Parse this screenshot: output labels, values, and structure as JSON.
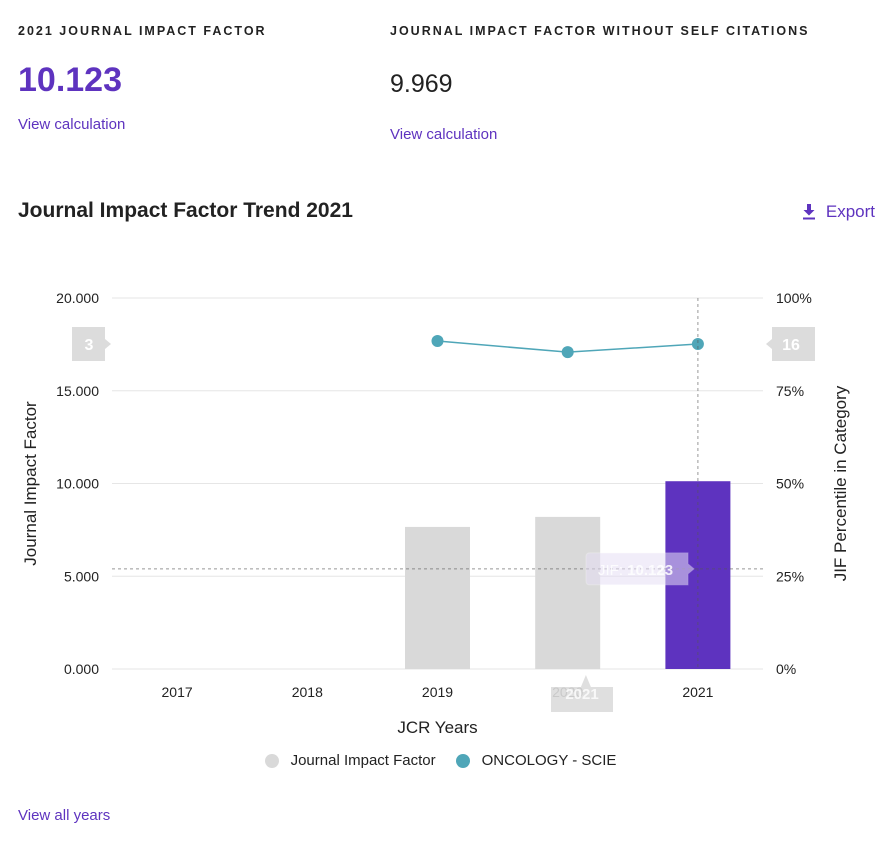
{
  "metrics": [
    {
      "label": "2021 JOURNAL IMPACT FACTOR",
      "value": "10.123",
      "link": "View calculation"
    },
    {
      "label": "JOURNAL IMPACT FACTOR WITHOUT SELF CITATIONS",
      "value": "9.969",
      "link": "View calculation"
    }
  ],
  "trend": {
    "title": "Journal Impact Factor Trend 2021",
    "export_label": "Export",
    "view_all_label": "View all years"
  },
  "colors": {
    "accent": "#5e33bf",
    "bar_default": "#d9d9d9",
    "bar_selected": "#5e33bf",
    "line": "#4fa6b8",
    "grid": "#e6e6e6"
  },
  "chart_data": {
    "type": "bar+line",
    "categories": [
      "2017",
      "2018",
      "2019",
      "2020",
      "2021"
    ],
    "xlabel": "JCR Years",
    "ylabel": "Journal Impact Factor",
    "y2label": "JIF Percentile in Category",
    "ylim": [
      0,
      20
    ],
    "y2lim": [
      0,
      100
    ],
    "yticks": [
      "0.000",
      "5.000",
      "10.000",
      "15.000",
      "20.000"
    ],
    "y2ticks": [
      "0%",
      "25%",
      "50%",
      "75%",
      "100%"
    ],
    "grid": true,
    "legend_position": "bottom-center",
    "series": [
      {
        "name": "Journal Impact Factor",
        "type": "bar",
        "axis": "left",
        "values": [
          null,
          null,
          7.66,
          8.2,
          10.123
        ],
        "highlight_index": 4
      },
      {
        "name": "ONCOLOGY - SCIE",
        "type": "line",
        "axis": "right",
        "values": [
          null,
          null,
          88.4,
          85.4,
          87.6
        ]
      }
    ],
    "crosshair": {
      "category": "2021",
      "y_value": 5.4,
      "tooltip": {
        "prefix": "JIF: ",
        "value": "10.123"
      },
      "left_flag": "3",
      "right_flag": "16",
      "x_flag": "2021"
    }
  }
}
